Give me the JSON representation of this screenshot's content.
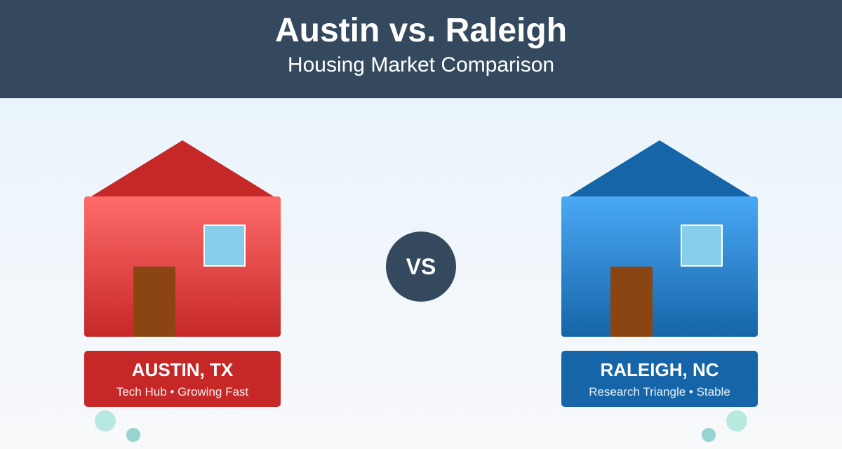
{
  "header": {
    "title": "Austin vs. Raleigh",
    "subtitle": "Housing Market Comparison"
  },
  "vs_label": "VS",
  "cities": [
    {
      "name": "AUSTIN, TX",
      "tagline": "Tech Hub • Growing Fast",
      "roof_color": "#c62828",
      "body_top": "#ff6b6b",
      "body_bottom": "#c62828",
      "label_color": "#c62828"
    },
    {
      "name": "RALEIGH, NC",
      "tagline": "Research Triangle • Stable",
      "roof_color": "#1565a8",
      "body_top": "#4aa8f5",
      "body_bottom": "#1565a8",
      "label_color": "#1565a8"
    }
  ],
  "colors": {
    "header": "#34495e",
    "window": "#87ceeb",
    "door": "#8b4513",
    "dot_light": "#b8e9e0",
    "dot_dark": "#96d3d1"
  }
}
